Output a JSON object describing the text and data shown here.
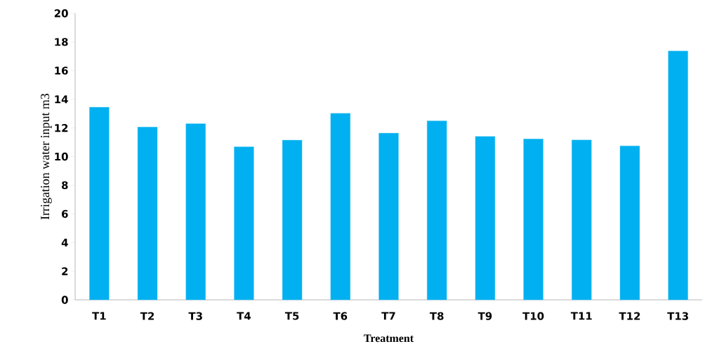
{
  "chart_data": {
    "type": "bar",
    "xlabel": "Treatment",
    "ylabel": "Irrigation water input m3",
    "categories": [
      "T1",
      "T2",
      "T3",
      "T4",
      "T5",
      "T6",
      "T7",
      "T8",
      "T9",
      "T10",
      "T11",
      "T12",
      "T13"
    ],
    "values": [
      13.45,
      12.06,
      12.3,
      10.69,
      11.15,
      13.02,
      11.64,
      12.5,
      11.41,
      11.23,
      11.16,
      10.75,
      17.37
    ],
    "color": "#00b0f0",
    "ylim": [
      0,
      20
    ],
    "yticks": [
      0,
      2,
      4,
      6,
      8,
      10,
      12,
      14,
      16,
      18,
      20
    ],
    "grid": false
  }
}
